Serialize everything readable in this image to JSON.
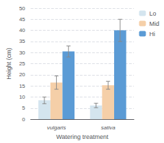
{
  "chart_data": {
    "type": "bar",
    "categories": [
      "vulgaris",
      "sativa"
    ],
    "series": [
      {
        "name": "Lo",
        "values": [
          8.5,
          6.2
        ],
        "errors": [
          1.5,
          1.0
        ],
        "color": "#d4e5ef"
      },
      {
        "name": "Mid",
        "values": [
          16.5,
          15.3
        ],
        "errors": [
          3.0,
          1.8
        ],
        "color": "#f5cfa8"
      },
      {
        "name": "Hi",
        "values": [
          30.5,
          40.0
        ],
        "errors": [
          2.5,
          5.0
        ],
        "color": "#5b9bd5"
      }
    ],
    "xlabel": "Watering treatment",
    "ylabel": "Height (cm)",
    "ylim": [
      0,
      50
    ],
    "yticks": [
      0,
      5,
      10,
      15,
      20,
      25,
      30,
      35,
      40,
      45,
      50
    ],
    "grid": true,
    "legend": "upper right"
  }
}
